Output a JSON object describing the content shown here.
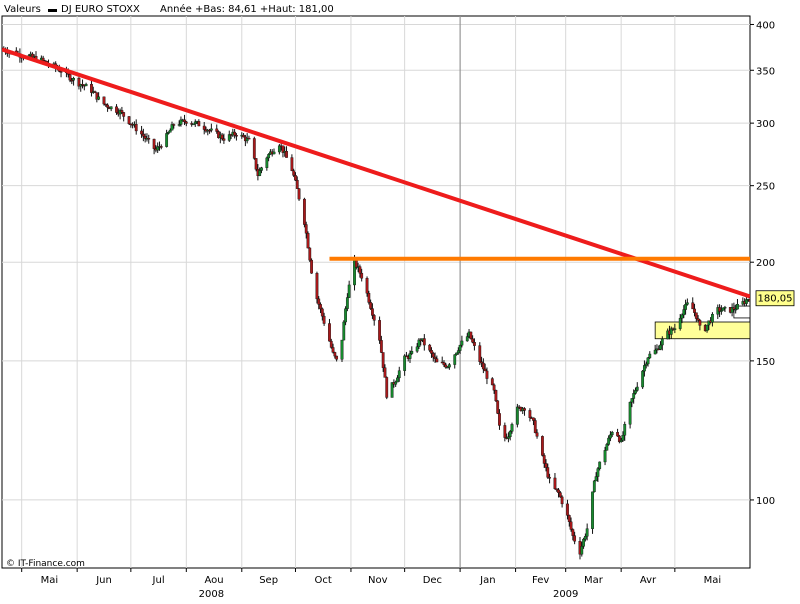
{
  "header": {
    "section": "Valeurs",
    "series_name": "DJ EURO STOXX",
    "stats": "Année +Bas: 84,61 +Haut: 181,00"
  },
  "source": "© IT-Finance.com",
  "current_price_label": "180,05",
  "chart_data": {
    "type": "candlestick",
    "title": "DJ EURO STOXX",
    "y_scale": "log",
    "ylim": [
      82,
      410
    ],
    "y_ticks": [
      400,
      350,
      300,
      250,
      200,
      150,
      100
    ],
    "y_tick_labels": [
      "400",
      "350",
      "300",
      "250",
      "200",
      "150",
      "100"
    ],
    "x_range": [
      "2008-04-20",
      "2009-06-12"
    ],
    "x_month_ticks": [
      {
        "date": "2008-05-01",
        "label": "Mai"
      },
      {
        "date": "2008-06-01",
        "label": "Jun"
      },
      {
        "date": "2008-07-01",
        "label": "Jul"
      },
      {
        "date": "2008-08-01",
        "label": "Aou"
      },
      {
        "date": "2008-09-01",
        "label": "Sep"
      },
      {
        "date": "2008-10-01",
        "label": "Oct"
      },
      {
        "date": "2008-11-01",
        "label": "Nov"
      },
      {
        "date": "2008-12-01",
        "label": "Dec"
      },
      {
        "date": "2009-01-01",
        "label": "Jan"
      },
      {
        "date": "2009-02-01",
        "label": "Fev"
      },
      {
        "date": "2009-03-01",
        "label": "Mar"
      },
      {
        "date": "2009-04-01",
        "label": "Avr"
      },
      {
        "date": "2009-05-01",
        "label": "Mai"
      }
    ],
    "x_year_ticks": [
      {
        "date": "2008-08-15",
        "label": "2008"
      },
      {
        "date": "2009-03-01",
        "label": "2009"
      }
    ],
    "year_separator": "2009-01-01",
    "grid": true,
    "price_path": [
      [
        "2008-04-20",
        372
      ],
      [
        "2008-05-01",
        366
      ],
      [
        "2008-05-10",
        362
      ],
      [
        "2008-05-20",
        353
      ],
      [
        "2008-06-01",
        338
      ],
      [
        "2008-06-08",
        332
      ],
      [
        "2008-06-15",
        318
      ],
      [
        "2008-06-25",
        310
      ],
      [
        "2008-07-01",
        300
      ],
      [
        "2008-07-08",
        289
      ],
      [
        "2008-07-15",
        277
      ],
      [
        "2008-07-20",
        286
      ],
      [
        "2008-07-25",
        299
      ],
      [
        "2008-08-01",
        302
      ],
      [
        "2008-08-08",
        299
      ],
      [
        "2008-08-15",
        293
      ],
      [
        "2008-08-22",
        287
      ],
      [
        "2008-08-29",
        291
      ],
      [
        "2008-09-05",
        285
      ],
      [
        "2008-09-10",
        258
      ],
      [
        "2008-09-15",
        272
      ],
      [
        "2008-09-22",
        283
      ],
      [
        "2008-09-29",
        262
      ],
      [
        "2008-10-02",
        247
      ],
      [
        "2008-10-06",
        225
      ],
      [
        "2008-10-10",
        195
      ],
      [
        "2008-10-13",
        180
      ],
      [
        "2008-10-17",
        168
      ],
      [
        "2008-10-22",
        153
      ],
      [
        "2008-10-24",
        150
      ],
      [
        "2008-10-27",
        160
      ],
      [
        "2008-10-30",
        182
      ],
      [
        "2008-11-03",
        200
      ],
      [
        "2008-11-07",
        192
      ],
      [
        "2008-11-12",
        176
      ],
      [
        "2008-11-17",
        160
      ],
      [
        "2008-11-21",
        136
      ],
      [
        "2008-11-26",
        142
      ],
      [
        "2008-12-01",
        151
      ],
      [
        "2008-12-05",
        153
      ],
      [
        "2008-12-10",
        160
      ],
      [
        "2008-12-15",
        154
      ],
      [
        "2008-12-19",
        149
      ],
      [
        "2008-12-25",
        148
      ],
      [
        "2009-01-01",
        157
      ],
      [
        "2009-01-06",
        162
      ],
      [
        "2009-01-12",
        150
      ],
      [
        "2009-01-20",
        137
      ],
      [
        "2009-01-24",
        119
      ],
      [
        "2009-01-28",
        121
      ],
      [
        "2009-02-01",
        130
      ],
      [
        "2009-02-06",
        131
      ],
      [
        "2009-02-11",
        125
      ],
      [
        "2009-02-16",
        113
      ],
      [
        "2009-02-21",
        104
      ],
      [
        "2009-02-25",
        102
      ],
      [
        "2009-03-01",
        97
      ],
      [
        "2009-03-05",
        90
      ],
      [
        "2009-03-09",
        86
      ],
      [
        "2009-03-13",
        92
      ],
      [
        "2009-03-18",
        108
      ],
      [
        "2009-03-23",
        116
      ],
      [
        "2009-03-28",
        124
      ],
      [
        "2009-04-01",
        118
      ],
      [
        "2009-04-06",
        132
      ],
      [
        "2009-04-11",
        142
      ],
      [
        "2009-04-16",
        152
      ],
      [
        "2009-04-21",
        155
      ],
      [
        "2009-04-26",
        162
      ],
      [
        "2009-05-01",
        165
      ],
      [
        "2009-05-05",
        173
      ],
      [
        "2009-05-09",
        178
      ],
      [
        "2009-05-13",
        171
      ],
      [
        "2009-05-16",
        162
      ],
      [
        "2009-05-20",
        168
      ],
      [
        "2009-05-25",
        174
      ],
      [
        "2009-06-01",
        174
      ],
      [
        "2009-06-06",
        176
      ],
      [
        "2009-06-11",
        180
      ]
    ],
    "lines": [
      {
        "name": "downtrend",
        "color": "#ee1c1c",
        "from": [
          "2008-04-20",
          372
        ],
        "to": [
          "2009-06-12",
          181
        ]
      },
      {
        "name": "resistance",
        "color": "#ff7a00",
        "from": [
          "2008-10-20",
          202
        ],
        "to": [
          "2009-06-12",
          202
        ]
      }
    ],
    "zones": [
      {
        "from": "2009-06-03",
        "to": "2009-06-12",
        "y1": 170,
        "y2": 176,
        "color": "#ffffff"
      },
      {
        "from": "2009-04-20",
        "to": "2009-06-12",
        "y1": 160,
        "y2": 168,
        "color": "#ffff99"
      }
    ],
    "last_value": 180.05,
    "colors": {
      "up": "#178a2e",
      "down": "#a8181a",
      "wick": "#111111",
      "grid": "#d8d8d8"
    }
  }
}
